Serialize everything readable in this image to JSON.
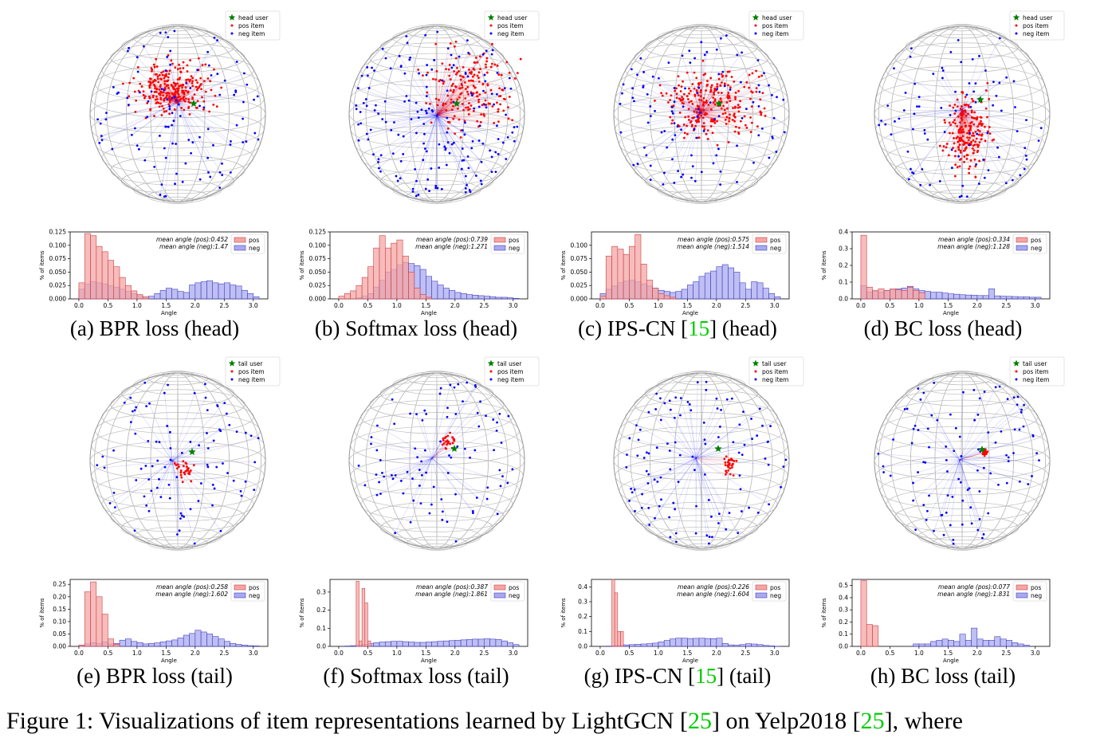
{
  "figure_caption": {
    "prefix": "Figure 1: Visualizations of item representations learned by LightGCN [",
    "ref1": "25",
    "middle": "] on Yelp2018 [",
    "ref2": "25",
    "suffix": "], where"
  },
  "subcaptions": [
    {
      "text": "(a) BPR loss (head)"
    },
    {
      "text": "(b) Softmax loss (head)"
    },
    {
      "pre": "(c) IPS-CN [",
      "ref": "15",
      "post": "] (head)"
    },
    {
      "text": "(d) BC loss (head)"
    },
    {
      "text": "(e) BPR loss (tail)"
    },
    {
      "text": "(f) Softmax loss (tail)"
    },
    {
      "pre": "(g) IPS-CN [",
      "ref": "15",
      "post": "] (tail)"
    },
    {
      "text": "(h) BC loss (tail)"
    }
  ],
  "colors": {
    "pos": "#ff0000",
    "neg": "#0000ff",
    "user": "#008000",
    "pos_fill": "#f4a6a6",
    "neg_fill": "#a9a9f0",
    "sphere": "#bbbbbb"
  },
  "chart_data": [
    {
      "type": "scatter",
      "panel": "a-sphere",
      "legend": [
        "head user",
        "pos item",
        "neg item"
      ],
      "legend_position": "top-right"
    },
    {
      "type": "scatter",
      "panel": "b-sphere",
      "legend": [
        "head user",
        "pos item",
        "neg item"
      ],
      "legend_position": "top-right"
    },
    {
      "type": "scatter",
      "panel": "c-sphere",
      "legend": [
        "head user",
        "pos item",
        "neg item"
      ],
      "legend_position": "top-right"
    },
    {
      "type": "scatter",
      "panel": "d-sphere",
      "legend": [
        "head user",
        "pos item",
        "neg item"
      ],
      "legend_position": "top-right"
    },
    {
      "type": "scatter",
      "panel": "e-sphere",
      "legend": [
        "tail user",
        "pos item",
        "neg item"
      ],
      "legend_position": "top-right"
    },
    {
      "type": "scatter",
      "panel": "f-sphere",
      "legend": [
        "tail user",
        "pos item",
        "neg item"
      ],
      "legend_position": "top-right"
    },
    {
      "type": "scatter",
      "panel": "g-sphere",
      "legend": [
        "tail user",
        "pos item",
        "neg item"
      ],
      "legend_position": "top-right"
    },
    {
      "type": "scatter",
      "panel": "h-sphere",
      "legend": [
        "tail user",
        "pos item",
        "neg item"
      ],
      "legend_position": "top-right"
    },
    {
      "type": "bar",
      "panel": "a-hist",
      "xlabel": "Angle",
      "ylabel": "% of items",
      "xlim": [
        0,
        3.2
      ],
      "ylim": [
        0,
        0.125
      ],
      "xticks": [
        "0.0",
        "0.5",
        "1.0",
        "1.5",
        "2.0",
        "2.5",
        "3.0"
      ],
      "yticks": [
        "0.000",
        "0.025",
        "0.050",
        "0.075",
        "0.100",
        "0.125"
      ],
      "stat_pos": "mean angle (pos):0.452",
      "stat_neg": "mean angle (neg):1.47",
      "series": [
        {
          "name": "pos",
          "bin_start": 0,
          "bin_width": 0.1,
          "values": [
            0.03,
            0.122,
            0.118,
            0.098,
            0.088,
            0.072,
            0.06,
            0.04,
            0.025,
            0.015,
            0.008,
            0.004
          ]
        },
        {
          "name": "neg",
          "bin_start": 0,
          "bin_width": 0.1,
          "values": [
            0.018,
            0.028,
            0.032,
            0.03,
            0.028,
            0.025,
            0.022,
            0.018,
            0.014,
            0.01,
            0.006,
            0.004,
            0.005,
            0.01,
            0.016,
            0.02,
            0.018,
            0.014,
            0.012,
            0.026,
            0.03,
            0.032,
            0.034,
            0.03,
            0.028,
            0.03,
            0.026,
            0.024,
            0.016,
            0.01,
            0.004
          ]
        }
      ]
    },
    {
      "type": "bar",
      "panel": "b-hist",
      "xlabel": "Angle",
      "ylabel": "% of items",
      "xlim": [
        0,
        3.2
      ],
      "ylim": [
        0,
        0.125
      ],
      "xticks": [
        "0.0",
        "0.5",
        "1.0",
        "1.5",
        "2.0",
        "2.5",
        "3.0"
      ],
      "yticks": [
        "0.000",
        "0.025",
        "0.050",
        "0.075",
        "0.100",
        "0.125"
      ],
      "stat_pos": "mean angle (pos):0.739",
      "stat_neg": "mean angle (neg):1.271",
      "series": [
        {
          "name": "pos",
          "bin_start": 0,
          "bin_width": 0.1,
          "values": [
            0.005,
            0.01,
            0.015,
            0.025,
            0.04,
            0.06,
            0.095,
            0.118,
            0.095,
            0.104,
            0.11,
            0.08,
            0.05,
            0.02,
            0.008,
            0.003
          ]
        },
        {
          "name": "neg",
          "bin_start": 0,
          "bin_width": 0.1,
          "values": [
            0,
            0,
            0,
            0.002,
            0.005,
            0.01,
            0.022,
            0.035,
            0.05,
            0.055,
            0.063,
            0.068,
            0.066,
            0.062,
            0.055,
            0.042,
            0.033,
            0.026,
            0.02,
            0.016,
            0.012,
            0.01,
            0.008,
            0.007,
            0.006,
            0.005,
            0.004,
            0.003,
            0.003,
            0.002,
            0.001
          ]
        }
      ]
    },
    {
      "type": "bar",
      "panel": "c-hist",
      "xlabel": "Angle",
      "ylabel": "% of items",
      "xlim": [
        0,
        3.2
      ],
      "ylim": [
        0,
        0.125
      ],
      "xticks": [
        "0.0",
        "0.5",
        "1.0",
        "1.5",
        "2.0",
        "2.5",
        "3.0"
      ],
      "yticks": [
        "0.000",
        "0.025",
        "0.050",
        "0.075",
        "0.100"
      ],
      "stat_pos": "mean angle (pos):0.575",
      "stat_neg": "mean angle (neg):1.514",
      "series": [
        {
          "name": "pos",
          "bin_start": 0,
          "bin_width": 0.1,
          "values": [
            0.005,
            0.08,
            0.098,
            0.093,
            0.083,
            0.098,
            0.12,
            0.065,
            0.035,
            0.02,
            0.01,
            0.006,
            0.003
          ]
        },
        {
          "name": "neg",
          "bin_start": 0,
          "bin_width": 0.1,
          "values": [
            0.01,
            0.018,
            0.024,
            0.03,
            0.033,
            0.035,
            0.032,
            0.028,
            0.024,
            0.02,
            0.016,
            0.014,
            0.012,
            0.014,
            0.018,
            0.026,
            0.032,
            0.042,
            0.048,
            0.052,
            0.06,
            0.064,
            0.058,
            0.05,
            0.03,
            0.018,
            0.032,
            0.03,
            0.02,
            0.01,
            0.004
          ]
        }
      ]
    },
    {
      "type": "bar",
      "panel": "d-hist",
      "xlabel": "Angle",
      "ylabel": "% of items",
      "xlim": [
        0,
        3.2
      ],
      "ylim": [
        0,
        0.4
      ],
      "xticks": [
        "0.0",
        "0.5",
        "1.0",
        "1.5",
        "2.0",
        "2.5",
        "3.0"
      ],
      "yticks": [
        "0.0",
        "0.1",
        "0.2",
        "0.3",
        "0.4"
      ],
      "stat_pos": "mean angle (pos):0.334",
      "stat_neg": "mean angle (neg):1.128",
      "series": [
        {
          "name": "pos",
          "bin_start": 0,
          "bin_width": 0.1,
          "values": [
            0.38,
            0.07,
            0.05,
            0.06,
            0.05,
            0.06,
            0.055,
            0.05,
            0.07,
            0.05,
            0.035
          ]
        },
        {
          "name": "neg",
          "bin_start": 0,
          "bin_width": 0.1,
          "values": [
            0.08,
            0.04,
            0.045,
            0.04,
            0.05,
            0.055,
            0.06,
            0.065,
            0.075,
            0.06,
            0.05,
            0.045,
            0.04,
            0.04,
            0.035,
            0.03,
            0.028,
            0.025,
            0.023,
            0.022,
            0.02,
            0.02,
            0.06,
            0.018,
            0.016,
            0.015,
            0.014,
            0.012,
            0.012,
            0.01,
            0.01
          ]
        }
      ]
    },
    {
      "type": "bar",
      "panel": "e-hist",
      "xlabel": "Angle",
      "ylabel": "% of items",
      "xlim": [
        0,
        3.2
      ],
      "ylim": [
        0,
        0.27
      ],
      "xticks": [
        "0.0",
        "0.5",
        "1.0",
        "1.5",
        "2.0",
        "2.5",
        "3.0"
      ],
      "yticks": [
        "0.00",
        "0.05",
        "0.10",
        "0.15",
        "0.20",
        "0.25"
      ],
      "stat_pos": "mean angle (pos):0.258",
      "stat_neg": "mean angle (neg):1.602",
      "series": [
        {
          "name": "pos",
          "bin_start": 0,
          "bin_width": 0.1,
          "values": [
            0.005,
            0.22,
            0.26,
            0.2,
            0.13,
            0.03,
            0.008
          ]
        },
        {
          "name": "neg",
          "bin_start": 0,
          "bin_width": 0.1,
          "values": [
            0.005,
            0.01,
            0.015,
            0.012,
            0.018,
            0.01,
            0.012,
            0.025,
            0.03,
            0.02,
            0.015,
            0.01,
            0.012,
            0.014,
            0.018,
            0.022,
            0.026,
            0.034,
            0.045,
            0.052,
            0.065,
            0.058,
            0.05,
            0.04,
            0.03,
            0.02,
            0.012,
            0.008,
            0.005,
            0.003,
            0.002
          ]
        }
      ]
    },
    {
      "type": "bar",
      "panel": "f-hist",
      "xlabel": "Angle",
      "ylabel": "% of items",
      "xlim": [
        0,
        3.2
      ],
      "ylim": [
        0,
        0.37
      ],
      "xticks": [
        "0.0",
        "0.5",
        "1.0",
        "1.5",
        "2.0",
        "2.5",
        "3.0"
      ],
      "yticks": [
        "0.0",
        "0.1",
        "0.2",
        "0.3"
      ],
      "stat_pos": "mean angle (pos):0.387",
      "stat_neg": "mean angle (neg):1.861",
      "series": [
        {
          "name": "pos",
          "bin_start": 0,
          "bin_width": 0.05,
          "values": [
            0,
            0,
            0,
            0,
            0,
            0,
            0.36,
            0.03,
            0.32,
            0.24,
            0.03
          ]
        },
        {
          "name": "neg",
          "bin_start": 0,
          "bin_width": 0.1,
          "values": [
            0,
            0.002,
            0.004,
            0.006,
            0.01,
            0.015,
            0.02,
            0.024,
            0.026,
            0.028,
            0.028,
            0.026,
            0.024,
            0.022,
            0.022,
            0.024,
            0.026,
            0.028,
            0.03,
            0.032,
            0.034,
            0.036,
            0.038,
            0.04,
            0.04,
            0.042,
            0.04,
            0.038,
            0.03,
            0.02,
            0.01
          ]
        }
      ]
    },
    {
      "type": "bar",
      "panel": "g-hist",
      "xlabel": "Angle",
      "ylabel": "% of items",
      "xlim": [
        0,
        3.2
      ],
      "ylim": [
        0,
        0.45
      ],
      "xticks": [
        "0.0",
        "0.5",
        "1.0",
        "1.5",
        "2.0",
        "2.5",
        "3.0"
      ],
      "yticks": [
        "0.0",
        "0.1",
        "0.2",
        "0.3",
        "0.4"
      ],
      "stat_pos": "mean angle (pos):0.226",
      "stat_neg": "mean angle (neg):1.604",
      "series": [
        {
          "name": "pos",
          "bin_start": 0,
          "bin_width": 0.05,
          "values": [
            0,
            0,
            0,
            0,
            0.45,
            0.36,
            0.1,
            0.1
          ]
        },
        {
          "name": "neg",
          "bin_start": 0,
          "bin_width": 0.1,
          "values": [
            0,
            0.002,
            0.004,
            0.006,
            0.01,
            0.012,
            0.014,
            0.016,
            0.018,
            0.022,
            0.03,
            0.04,
            0.05,
            0.055,
            0.055,
            0.053,
            0.054,
            0.055,
            0.053,
            0.052,
            0.055,
            0.02,
            0.01,
            0.008,
            0.012,
            0.018,
            0.016,
            0.012,
            0.006,
            0.003,
            0.001
          ]
        }
      ]
    },
    {
      "type": "bar",
      "panel": "h-hist",
      "xlabel": "Angle",
      "ylabel": "% of items",
      "xlim": [
        0,
        3.2
      ],
      "ylim": [
        0,
        0.55
      ],
      "xticks": [
        "0.0",
        "0.5",
        "1.0",
        "1.5",
        "2.0",
        "2.5",
        "3.0"
      ],
      "yticks": [
        "0.0",
        "0.1",
        "0.2",
        "0.3",
        "0.4",
        "0.5"
      ],
      "stat_pos": "mean angle (pos):0.077",
      "stat_neg": "mean angle (neg):1.831",
      "series": [
        {
          "name": "pos",
          "bin_start": 0,
          "bin_width": 0.1,
          "values": [
            0.54,
            0.18,
            0.17
          ]
        },
        {
          "name": "neg",
          "bin_start": 0,
          "bin_width": 0.1,
          "values": [
            0,
            0,
            0,
            0,
            0,
            0,
            0,
            0,
            0,
            0.02,
            0.02,
            0.02,
            0.04,
            0.05,
            0.06,
            0.05,
            0.04,
            0.1,
            0.05,
            0.15,
            0.06,
            0.05,
            0.05,
            0.08,
            0.06,
            0.05,
            0.03,
            0.02,
            0.01,
            0,
            0
          ]
        }
      ]
    }
  ]
}
